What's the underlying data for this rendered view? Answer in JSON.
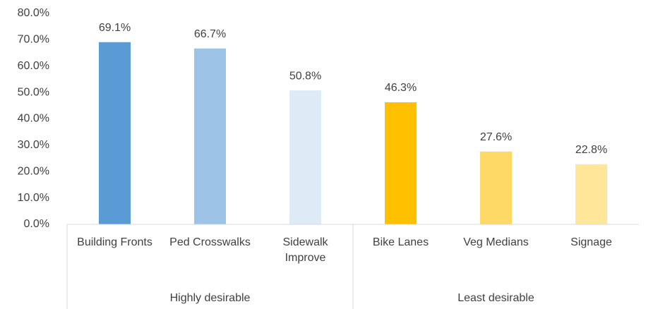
{
  "chart_data": {
    "type": "bar",
    "groups": [
      {
        "name": "Highly desirable",
        "categories": [
          "Building Fronts",
          "Ped Crosswalks",
          "Sidewalk Improve"
        ],
        "values": [
          69.1,
          66.7,
          50.8
        ],
        "value_labels": [
          "69.1%",
          "66.7%",
          "50.8%"
        ],
        "colors": [
          "#5b9bd5",
          "#9dc3e6",
          "#deebf7"
        ]
      },
      {
        "name": "Least desirable",
        "categories": [
          "Bike Lanes",
          "Veg Medians",
          "Signage"
        ],
        "values": [
          46.3,
          27.6,
          22.8
        ],
        "value_labels": [
          "46.3%",
          "27.6%",
          "22.8%"
        ],
        "colors": [
          "#ffc000",
          "#ffd966",
          "#ffe699"
        ]
      }
    ],
    "ylim": [
      0,
      80
    ],
    "yticks": [
      {
        "value": 0,
        "label": "0.0%"
      },
      {
        "value": 10,
        "label": "10.0%"
      },
      {
        "value": 20,
        "label": "20.0%"
      },
      {
        "value": 30,
        "label": "30.0%"
      },
      {
        "value": 40,
        "label": "40.0%"
      },
      {
        "value": 50,
        "label": "50.0%"
      },
      {
        "value": 60,
        "label": "60.0%"
      },
      {
        "value": 70,
        "label": "70.0%"
      },
      {
        "value": 80,
        "label": "80.0%"
      }
    ],
    "grid": false
  }
}
